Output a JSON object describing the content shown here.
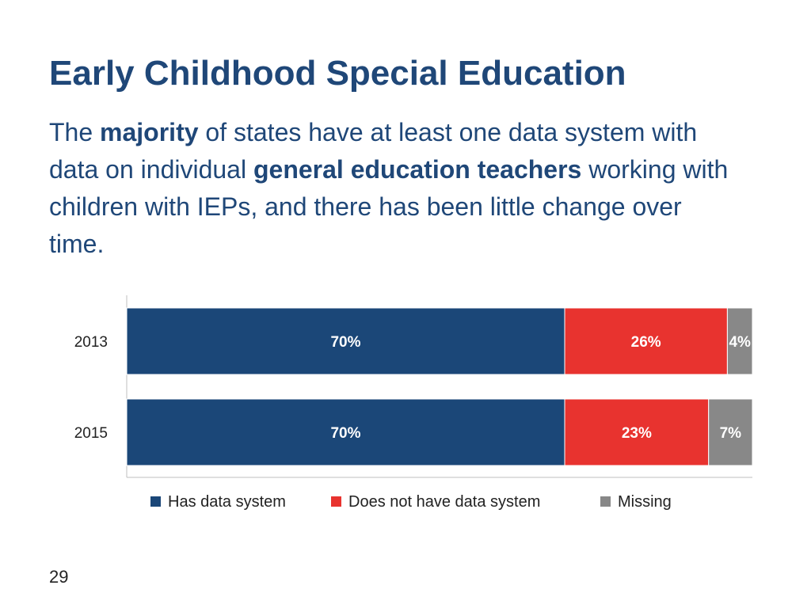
{
  "slide": {
    "title": "Early Childhood Special Education",
    "subtitle_parts": [
      {
        "text": "The ",
        "bold": false
      },
      {
        "text": "majority",
        "bold": true
      },
      {
        "text": " of states have at least one data system with data on individual ",
        "bold": false
      },
      {
        "text": "general education teachers",
        "bold": true
      },
      {
        "text": " working with children with IEPs, and there has been little change over time.",
        "bold": false
      }
    ],
    "page_number": "29"
  },
  "colors": {
    "title": "#1f4778",
    "has_data_system": "#1b4778",
    "does_not_have": "#e8332f",
    "missing": "#888888"
  },
  "chart_data": {
    "type": "bar",
    "orientation": "horizontal",
    "stacked": "percent",
    "categories": [
      "2013",
      "2015"
    ],
    "series": [
      {
        "name": "Has data system",
        "values": [
          70,
          70
        ],
        "labels": [
          "70%",
          "70%"
        ],
        "color": "#1b4778"
      },
      {
        "name": "Does not have data system",
        "values": [
          26,
          23
        ],
        "labels": [
          "26%",
          "23%"
        ],
        "color": "#e8332f"
      },
      {
        "name": "Missing",
        "values": [
          4,
          7
        ],
        "labels": [
          "4%",
          "7%"
        ],
        "color": "#888888"
      }
    ],
    "xlim": [
      0,
      100
    ],
    "legend_position": "bottom",
    "grid": false
  }
}
